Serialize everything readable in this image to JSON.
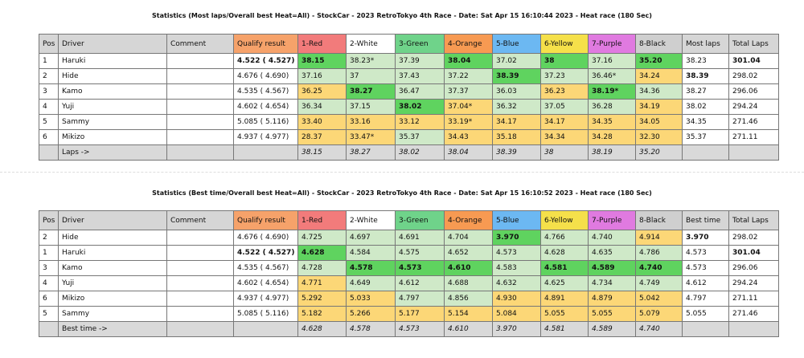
{
  "tables": [
    {
      "title": "Statistics (Most laps/Overall best Heat=All) - StockCar - 2023 RetroTokyo 4th Race - Date: Sat Apr 15 16:10:44 2023 - Heat race (180 Sec)",
      "header": [
        "Pos",
        "Driver",
        "Comment",
        "Qualify result",
        "1-Red",
        "2-White",
        "3-Green",
        "4-Orange",
        "5-Blue",
        "6-Yellow",
        "7-Purple",
        "8-Black",
        "Most laps",
        "Total Laps"
      ],
      "rows": [
        {
          "pos": "1",
          "driver": "Haruki",
          "qualify": "4.522 ( 4.527)",
          "lanes": [
            "38.15",
            "38.23*",
            "37.39",
            "38.04",
            "37.02",
            "38",
            "37.16",
            "35.20"
          ],
          "summary": "38.23",
          "total": "301.04"
        },
        {
          "pos": "2",
          "driver": "Hide",
          "qualify": "4.676 ( 4.690)",
          "lanes": [
            "37.16",
            "37",
            "37.43",
            "37.22",
            "38.39",
            "37.23",
            "36.46*",
            "34.24"
          ],
          "summary": "38.39",
          "total": "298.02"
        },
        {
          "pos": "3",
          "driver": "Kamo",
          "qualify": "4.535 ( 4.567)",
          "lanes": [
            "36.25",
            "38.27",
            "36.47",
            "37.37",
            "36.03",
            "36.23",
            "38.19*",
            "34.36"
          ],
          "summary": "38.27",
          "total": "296.06"
        },
        {
          "pos": "4",
          "driver": "Yuji",
          "qualify": "4.602 ( 4.654)",
          "lanes": [
            "36.34",
            "37.15",
            "38.02",
            "37.04*",
            "36.32",
            "37.05",
            "36.28",
            "34.19"
          ],
          "summary": "38.02",
          "total": "294.24"
        },
        {
          "pos": "5",
          "driver": "Sammy",
          "qualify": "5.085 ( 5.116)",
          "lanes": [
            "33.40",
            "33.16",
            "33.12",
            "33.19*",
            "34.17",
            "34.17",
            "34.35",
            "34.05"
          ],
          "summary": "34.35",
          "total": "271.46"
        },
        {
          "pos": "6",
          "driver": "Mikizo",
          "qualify": "4.937 ( 4.977)",
          "lanes": [
            "28.37",
            "33.47*",
            "35.37",
            "34.43",
            "35.18",
            "34.34",
            "34.28",
            "32.30"
          ],
          "summary": "35.37",
          "total": "271.11"
        }
      ],
      "footer": {
        "label": "Laps ->",
        "values": [
          "38.15",
          "38.27",
          "38.02",
          "38.04",
          "38.39",
          "38",
          "38.19",
          "35.20"
        ]
      }
    },
    {
      "title": "Statistics (Best time/Overall best Heat=All) - StockCar - 2023 RetroTokyo 4th Race - Date: Sat Apr 15 16:10:52 2023 - Heat race (180 Sec)",
      "header": [
        "Pos",
        "Driver",
        "Comment",
        "Qualify result",
        "1-Red",
        "2-White",
        "3-Green",
        "4-Orange",
        "5-Blue",
        "6-Yellow",
        "7-Purple",
        "8-Black",
        "Best time",
        "Total Laps"
      ],
      "rows": [
        {
          "pos": "2",
          "driver": "Hide",
          "qualify": "4.676 ( 4.690)",
          "lanes": [
            "4.725",
            "4.697",
            "4.691",
            "4.704",
            "3.970",
            "4.766",
            "4.740",
            "4.914"
          ],
          "summary": "3.970",
          "total": "298.02"
        },
        {
          "pos": "1",
          "driver": "Haruki",
          "qualify": "4.522 ( 4.527)",
          "lanes": [
            "4.628",
            "4.584",
            "4.575",
            "4.652",
            "4.573",
            "4.628",
            "4.635",
            "4.786"
          ],
          "summary": "4.573",
          "total": "301.04"
        },
        {
          "pos": "3",
          "driver": "Kamo",
          "qualify": "4.535 ( 4.567)",
          "lanes": [
            "4.728",
            "4.578",
            "4.573",
            "4.610",
            "4.583",
            "4.581",
            "4.589",
            "4.740"
          ],
          "summary": "4.573",
          "total": "296.06"
        },
        {
          "pos": "4",
          "driver": "Yuji",
          "qualify": "4.602 ( 4.654)",
          "lanes": [
            "4.771",
            "4.649",
            "4.612",
            "4.688",
            "4.632",
            "4.625",
            "4.734",
            "4.749"
          ],
          "summary": "4.612",
          "total": "294.24"
        },
        {
          "pos": "6",
          "driver": "Mikizo",
          "qualify": "4.937 ( 4.977)",
          "lanes": [
            "5.292",
            "5.033",
            "4.797",
            "4.856",
            "4.930",
            "4.891",
            "4.879",
            "5.042"
          ],
          "summary": "4.797",
          "total": "271.11"
        },
        {
          "pos": "5",
          "driver": "Sammy",
          "qualify": "5.085 ( 5.116)",
          "lanes": [
            "5.182",
            "5.266",
            "5.177",
            "5.154",
            "5.084",
            "5.055",
            "5.055",
            "5.079"
          ],
          "summary": "5.055",
          "total": "271.46"
        }
      ],
      "footer": {
        "label": "Best time ->",
        "values": [
          "4.628",
          "4.578",
          "4.573",
          "4.610",
          "3.970",
          "4.581",
          "4.589",
          "4.740"
        ]
      }
    }
  ]
}
